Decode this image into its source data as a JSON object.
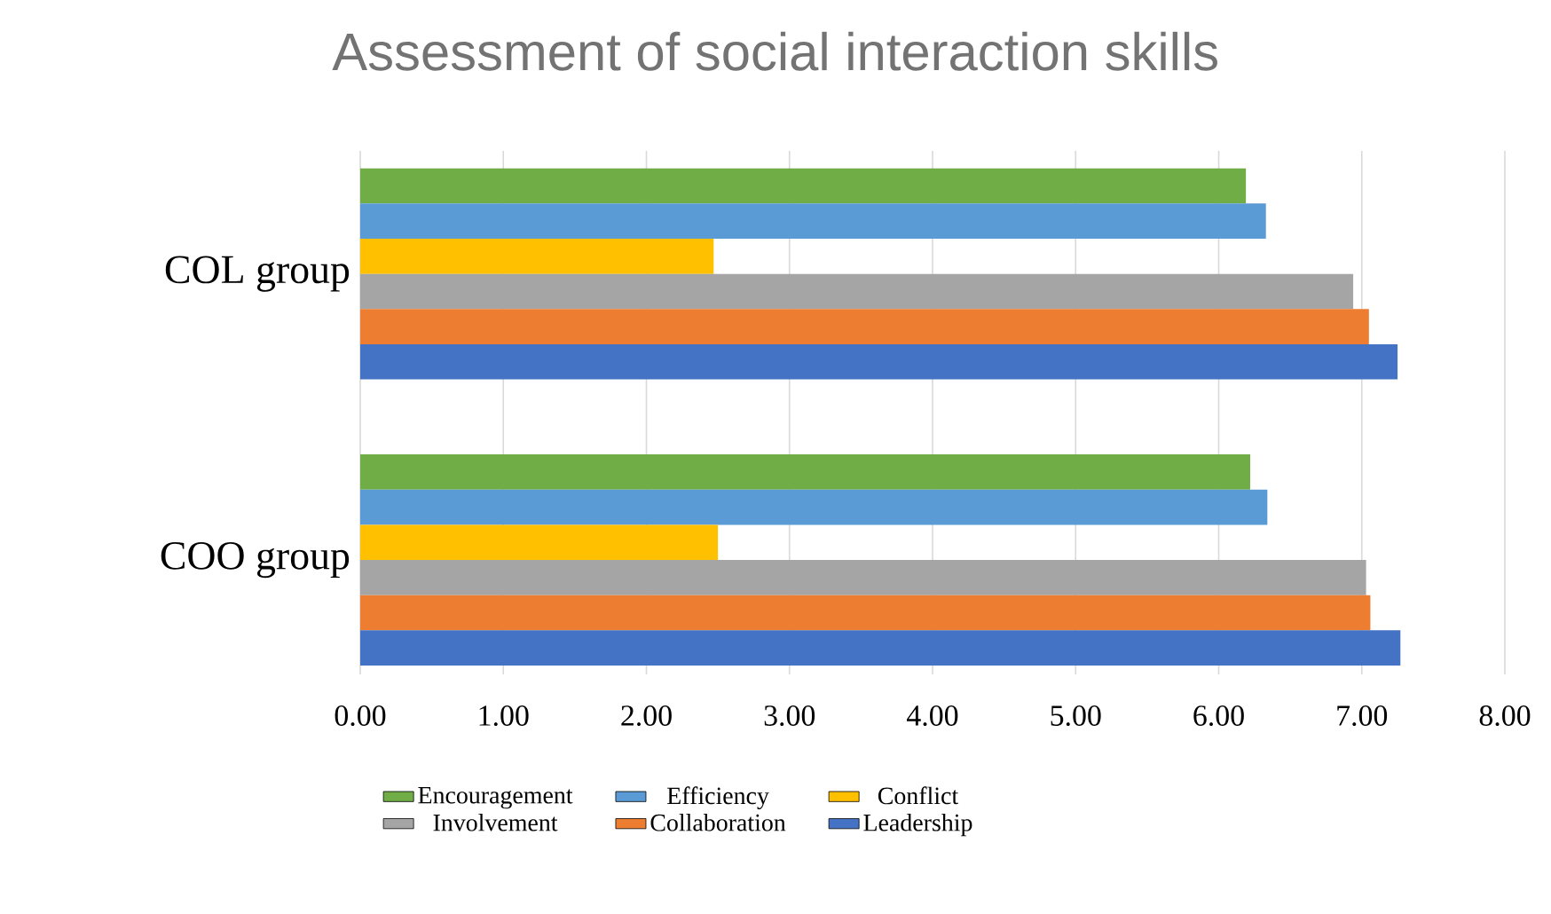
{
  "chart_data": {
    "type": "bar",
    "orientation": "horizontal",
    "title": "Assessment of social interaction skills",
    "categories": [
      "COL group",
      "COO group"
    ],
    "series": [
      {
        "name": "Encouragement",
        "color": "#70ad47",
        "values": [
          6.19,
          6.22
        ]
      },
      {
        "name": "Efficiency",
        "color": "#5b9bd5",
        "values": [
          6.33,
          6.34
        ]
      },
      {
        "name": "Conflict",
        "color": "#ffc000",
        "values": [
          2.47,
          2.5
        ]
      },
      {
        "name": "Involvement",
        "color": "#a5a5a5",
        "values": [
          6.94,
          7.03
        ]
      },
      {
        "name": "Collaboration",
        "color": "#ed7d31",
        "values": [
          7.05,
          7.06
        ]
      },
      {
        "name": "Leadership",
        "color": "#4472c4",
        "values": [
          7.25,
          7.27
        ]
      }
    ],
    "xlim": [
      0,
      8
    ],
    "xticks": [
      {
        "value": 0,
        "label": "0.00"
      },
      {
        "value": 1,
        "label": "1.00"
      },
      {
        "value": 2,
        "label": "2.00"
      },
      {
        "value": 3,
        "label": "3.00"
      },
      {
        "value": 4,
        "label": "4.00"
      },
      {
        "value": 5,
        "label": "5.00"
      },
      {
        "value": 6,
        "label": "6.00"
      },
      {
        "value": 7,
        "label": "7.00"
      },
      {
        "value": 8,
        "label": "8.00"
      }
    ],
    "grid": "x",
    "legend": "bottom"
  }
}
